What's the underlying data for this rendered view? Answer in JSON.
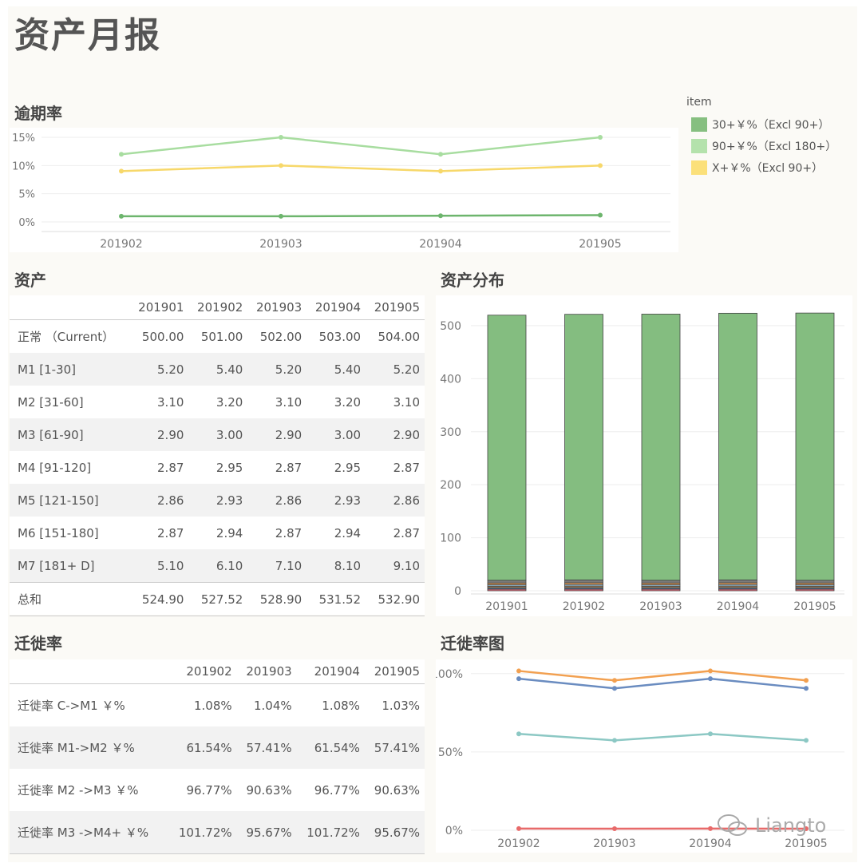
{
  "page": {
    "title": "资产月报"
  },
  "overdue": {
    "title": "逾期率",
    "chart_data": {
      "type": "line",
      "categories": [
        "201902",
        "201903",
        "201904",
        "201905"
      ],
      "ylim": [
        0,
        15
      ],
      "yticks": [
        "0%",
        "5%",
        "10%",
        "15%"
      ],
      "series": [
        {
          "name": "30+￥%（Excl 90+）",
          "color": "#6db56d",
          "values": [
            1.0,
            1.0,
            1.1,
            1.2
          ]
        },
        {
          "name": "90+￥%（Excl 180+）",
          "color": "#a8dda0",
          "values": [
            12.0,
            15.0,
            12.0,
            15.0
          ]
        },
        {
          "name": "X+￥%（Excl 90+）",
          "color": "#f7d86a",
          "values": [
            9.0,
            10.0,
            9.0,
            10.0
          ]
        }
      ]
    },
    "legend": {
      "title": "item",
      "items": [
        {
          "label": "30+￥%（Excl 90+）",
          "color": "#86bf80"
        },
        {
          "label": "90+￥%（Excl 180+）",
          "color": "#b4e2ac"
        },
        {
          "label": "X+￥%（Excl 90+）",
          "color": "#fbe07a"
        }
      ]
    }
  },
  "assets": {
    "title": "资产",
    "columns": [
      "",
      "201901",
      "201902",
      "201903",
      "201904",
      "201905"
    ],
    "rows": [
      {
        "label": "正常 （Current）",
        "values": [
          "500.00",
          "501.00",
          "502.00",
          "503.00",
          "504.00"
        ]
      },
      {
        "label": "M1 [1-30]",
        "values": [
          "5.20",
          "5.40",
          "5.20",
          "5.40",
          "5.20"
        ]
      },
      {
        "label": "M2 [31-60]",
        "values": [
          "3.10",
          "3.20",
          "3.10",
          "3.20",
          "3.10"
        ]
      },
      {
        "label": "M3 [61-90]",
        "values": [
          "2.90",
          "3.00",
          "2.90",
          "3.00",
          "2.90"
        ]
      },
      {
        "label": "M4 [91-120]",
        "values": [
          "2.87",
          "2.95",
          "2.87",
          "2.95",
          "2.87"
        ]
      },
      {
        "label": "M5 [121-150]",
        "values": [
          "2.86",
          "2.93",
          "2.86",
          "2.93",
          "2.86"
        ]
      },
      {
        "label": "M6 [151-180]",
        "values": [
          "2.87",
          "2.94",
          "2.87",
          "2.94",
          "2.87"
        ]
      },
      {
        "label": "M7 [181+ D]",
        "values": [
          "5.10",
          "6.10",
          "7.10",
          "8.10",
          "9.10"
        ]
      }
    ],
    "total": {
      "label": "总和",
      "values": [
        "524.90",
        "527.52",
        "528.90",
        "531.52",
        "532.90"
      ]
    }
  },
  "distribution": {
    "title": "资产分布",
    "chart_data": {
      "type": "bar",
      "stacked": true,
      "categories": [
        "201901",
        "201902",
        "201903",
        "201904",
        "201905"
      ],
      "ylim": [
        0,
        530
      ],
      "yticks": [
        0,
        100,
        200,
        300,
        400,
        500
      ],
      "series": [
        {
          "color": "#e8687a",
          "values": [
            2.87,
            2.94,
            2.87,
            2.94,
            2.87
          ]
        },
        {
          "color": "#4a6a8a",
          "values": [
            2.86,
            2.93,
            2.86,
            2.93,
            2.86
          ]
        },
        {
          "color": "#b08a5a",
          "values": [
            2.87,
            2.95,
            2.87,
            2.95,
            2.87
          ]
        },
        {
          "color": "#8fb8d0",
          "values": [
            2.9,
            3.0,
            2.9,
            3.0,
            2.9
          ]
        },
        {
          "color": "#f0a050",
          "values": [
            3.1,
            3.2,
            3.1,
            3.2,
            3.1
          ]
        },
        {
          "color": "#7a7a7a",
          "values": [
            5.2,
            5.4,
            5.2,
            5.4,
            5.2
          ]
        },
        {
          "color": "#84bd80",
          "values": [
            500.0,
            501.0,
            502.0,
            503.0,
            504.0
          ]
        }
      ]
    }
  },
  "migration": {
    "title": "迁徙率",
    "columns": [
      "",
      "201902",
      "201903",
      "201904",
      "201905"
    ],
    "rows": [
      {
        "label": "迁徙率 C->M1 ￥%",
        "values": [
          "1.08%",
          "1.04%",
          "1.08%",
          "1.03%"
        ]
      },
      {
        "label": "迁徙率 M1->M2 ￥%",
        "values": [
          "61.54%",
          "57.41%",
          "61.54%",
          "57.41%"
        ]
      },
      {
        "label": "迁徙率 M2 ->M3 ￥%",
        "values": [
          "96.77%",
          "90.63%",
          "96.77%",
          "90.63%"
        ]
      },
      {
        "label": "迁徙率 M3 ->M4+ ￥%",
        "values": [
          "101.72%",
          "95.67%",
          "101.72%",
          "95.67%"
        ]
      }
    ]
  },
  "migration_chart": {
    "title": "迁徙率图",
    "chart_data": {
      "type": "line",
      "categories": [
        "201902",
        "201903",
        "201904",
        "201905"
      ],
      "ylim": [
        0,
        105
      ],
      "yticks": [
        "0%",
        "50%",
        "100%"
      ],
      "series": [
        {
          "color": "#e86a6a",
          "values": [
            1.08,
            1.04,
            1.08,
            1.03
          ]
        },
        {
          "color": "#8cc8c4",
          "values": [
            61.54,
            57.41,
            61.54,
            57.41
          ]
        },
        {
          "color": "#6a8cc0",
          "values": [
            96.77,
            90.63,
            96.77,
            90.63
          ]
        },
        {
          "color": "#f2a050",
          "values": [
            101.72,
            95.67,
            101.72,
            95.67
          ]
        }
      ]
    }
  },
  "watermark": {
    "text": "Liangto"
  }
}
